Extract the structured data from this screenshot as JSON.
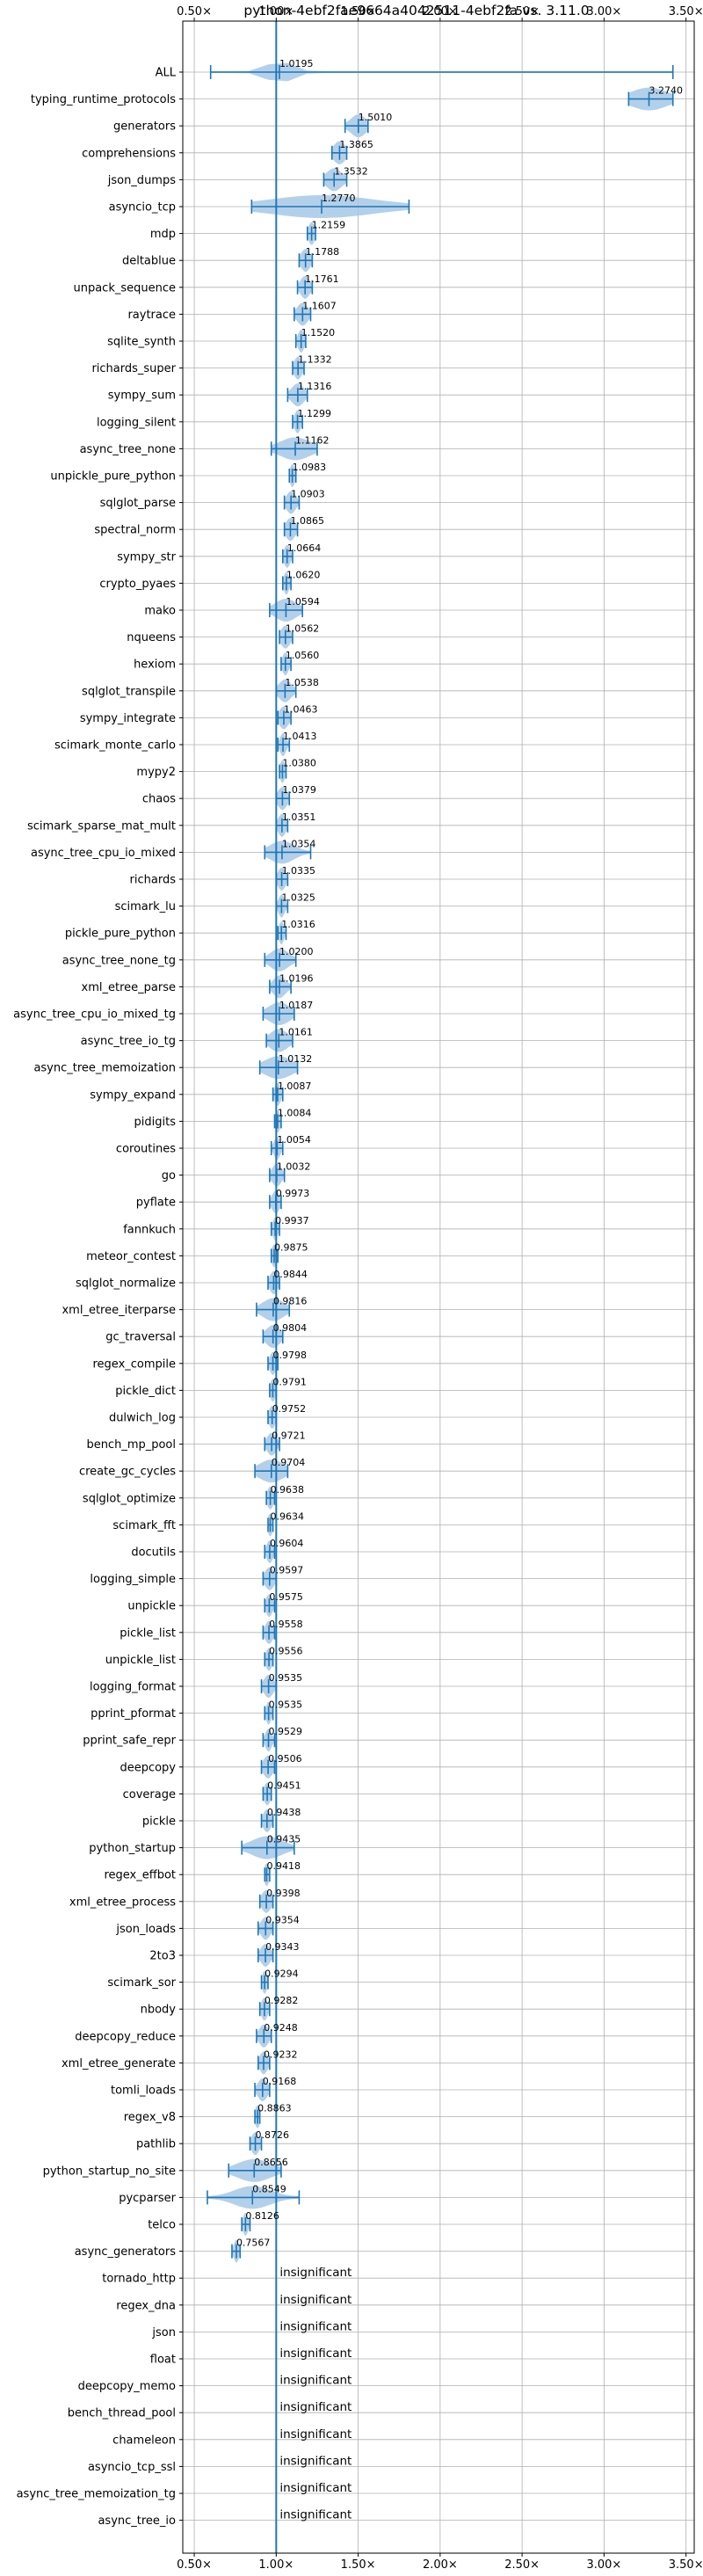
{
  "chart_data": {
    "type": "violin",
    "title": "python-4ebf2fae9664a4042511-4ebf2fa vs. 3.11.0",
    "xlim": [
      0.43,
      3.55
    ],
    "reference_line": 1.0,
    "grid": true,
    "x_ticks": [
      0.5,
      1.0,
      1.5,
      2.0,
      2.5,
      3.0,
      3.5
    ],
    "x_tick_labels": [
      "0.50×",
      "1.00×",
      "1.50×",
      "2.00×",
      "2.50×",
      "3.00×",
      "3.50×"
    ],
    "benchmarks": [
      {
        "name": "ALL",
        "label": "1.0195",
        "value": 1.0195,
        "min": 0.6,
        "max": 3.42,
        "spread": 0.08
      },
      {
        "name": "typing_runtime_protocols",
        "label": "3.2740",
        "value": 3.274,
        "min": 3.15,
        "max": 3.42,
        "spread": 0.12
      },
      {
        "name": "generators",
        "label": "1.5010",
        "value": 1.501,
        "min": 1.42,
        "max": 1.56,
        "spread": 0.05
      },
      {
        "name": "comprehensions",
        "label": "1.3865",
        "value": 1.3865,
        "min": 1.34,
        "max": 1.43,
        "spread": 0.04
      },
      {
        "name": "json_dumps",
        "label": "1.3532",
        "value": 1.3532,
        "min": 1.29,
        "max": 1.43,
        "spread": 0.05
      },
      {
        "name": "asyncio_tcp",
        "label": "1.2770",
        "value": 1.277,
        "min": 0.85,
        "max": 1.81,
        "spread": 0.35
      },
      {
        "name": "mdp",
        "label": "1.2159",
        "value": 1.2159,
        "min": 1.19,
        "max": 1.24,
        "spread": 0.02
      },
      {
        "name": "deltablue",
        "label": "1.1788",
        "value": 1.1788,
        "min": 1.14,
        "max": 1.22,
        "spread": 0.03
      },
      {
        "name": "unpack_sequence",
        "label": "1.1761",
        "value": 1.1761,
        "min": 1.13,
        "max": 1.22,
        "spread": 0.03
      },
      {
        "name": "raytrace",
        "label": "1.1607",
        "value": 1.1607,
        "min": 1.11,
        "max": 1.21,
        "spread": 0.035
      },
      {
        "name": "sqlite_synth",
        "label": "1.1520",
        "value": 1.152,
        "min": 1.12,
        "max": 1.18,
        "spread": 0.02
      },
      {
        "name": "richards_super",
        "label": "1.1332",
        "value": 1.1332,
        "min": 1.1,
        "max": 1.17,
        "spread": 0.025
      },
      {
        "name": "sympy_sum",
        "label": "1.1316",
        "value": 1.1316,
        "min": 1.07,
        "max": 1.19,
        "spread": 0.04
      },
      {
        "name": "logging_silent",
        "label": "1.1299",
        "value": 1.1299,
        "min": 1.1,
        "max": 1.16,
        "spread": 0.02
      },
      {
        "name": "async_tree_none",
        "label": "1.1162",
        "value": 1.1162,
        "min": 0.97,
        "max": 1.25,
        "spread": 0.1
      },
      {
        "name": "unpickle_pure_python",
        "label": "1.0983",
        "value": 1.0983,
        "min": 1.08,
        "max": 1.12,
        "spread": 0.015
      },
      {
        "name": "sqlglot_parse",
        "label": "1.0903",
        "value": 1.0903,
        "min": 1.05,
        "max": 1.14,
        "spread": 0.03
      },
      {
        "name": "spectral_norm",
        "label": "1.0865",
        "value": 1.0865,
        "min": 1.05,
        "max": 1.13,
        "spread": 0.03
      },
      {
        "name": "sympy_str",
        "label": "1.0664",
        "value": 1.0664,
        "min": 1.04,
        "max": 1.1,
        "spread": 0.02
      },
      {
        "name": "crypto_pyaes",
        "label": "1.0620",
        "value": 1.062,
        "min": 1.04,
        "max": 1.09,
        "spread": 0.015
      },
      {
        "name": "mako",
        "label": "1.0594",
        "value": 1.0594,
        "min": 0.96,
        "max": 1.16,
        "spread": 0.07
      },
      {
        "name": "nqueens",
        "label": "1.0562",
        "value": 1.0562,
        "min": 1.02,
        "max": 1.1,
        "spread": 0.03
      },
      {
        "name": "hexiom",
        "label": "1.0560",
        "value": 1.056,
        "min": 1.03,
        "max": 1.09,
        "spread": 0.02
      },
      {
        "name": "sqlglot_transpile",
        "label": "1.0538",
        "value": 1.0538,
        "min": 1.0,
        "max": 1.12,
        "spread": 0.04
      },
      {
        "name": "sympy_integrate",
        "label": "1.0463",
        "value": 1.0463,
        "min": 1.01,
        "max": 1.09,
        "spread": 0.03
      },
      {
        "name": "scimark_monte_carlo",
        "label": "1.0413",
        "value": 1.0413,
        "min": 1.01,
        "max": 1.08,
        "spread": 0.02
      },
      {
        "name": "mypy2",
        "label": "1.0380",
        "value": 1.038,
        "min": 1.02,
        "max": 1.06,
        "spread": 0.015
      },
      {
        "name": "chaos",
        "label": "1.0379",
        "value": 1.0379,
        "min": 1.0,
        "max": 1.08,
        "spread": 0.03
      },
      {
        "name": "scimark_sparse_mat_mult",
        "label": "1.0351",
        "value": 1.0351,
        "min": 1.0,
        "max": 1.07,
        "spread": 0.025
      },
      {
        "name": "async_tree_cpu_io_mixed",
        "label": "1.0354",
        "value": 1.0354,
        "min": 0.93,
        "max": 1.21,
        "spread": 0.08
      },
      {
        "name": "richards",
        "label": "1.0335",
        "value": 1.0335,
        "min": 1.0,
        "max": 1.07,
        "spread": 0.025
      },
      {
        "name": "scimark_lu",
        "label": "1.0325",
        "value": 1.0325,
        "min": 1.0,
        "max": 1.07,
        "spread": 0.02
      },
      {
        "name": "pickle_pure_python",
        "label": "1.0316",
        "value": 1.0316,
        "min": 1.01,
        "max": 1.06,
        "spread": 0.015
      },
      {
        "name": "async_tree_none_tg",
        "label": "1.0200",
        "value": 1.02,
        "min": 0.93,
        "max": 1.12,
        "spread": 0.06
      },
      {
        "name": "xml_etree_parse",
        "label": "1.0196",
        "value": 1.0196,
        "min": 0.96,
        "max": 1.09,
        "spread": 0.04
      },
      {
        "name": "async_tree_cpu_io_mixed_tg",
        "label": "1.0187",
        "value": 1.0187,
        "min": 0.92,
        "max": 1.11,
        "spread": 0.07
      },
      {
        "name": "async_tree_io_tg",
        "label": "1.0161",
        "value": 1.0161,
        "min": 0.94,
        "max": 1.1,
        "spread": 0.06
      },
      {
        "name": "async_tree_memoization",
        "label": "1.0132",
        "value": 1.0132,
        "min": 0.9,
        "max": 1.13,
        "spread": 0.09
      },
      {
        "name": "sympy_expand",
        "label": "1.0087",
        "value": 1.0087,
        "min": 0.98,
        "max": 1.04,
        "spread": 0.02
      },
      {
        "name": "pidigits",
        "label": "1.0084",
        "value": 1.0084,
        "min": 0.99,
        "max": 1.03,
        "spread": 0.015
      },
      {
        "name": "coroutines",
        "label": "1.0054",
        "value": 1.0054,
        "min": 0.97,
        "max": 1.04,
        "spread": 0.02
      },
      {
        "name": "go",
        "label": "1.0032",
        "value": 1.0032,
        "min": 0.96,
        "max": 1.05,
        "spread": 0.03
      },
      {
        "name": "pyflate",
        "label": "0.9973",
        "value": 0.9973,
        "min": 0.96,
        "max": 1.03,
        "spread": 0.025
      },
      {
        "name": "fannkuch",
        "label": "0.9937",
        "value": 0.9937,
        "min": 0.97,
        "max": 1.02,
        "spread": 0.015
      },
      {
        "name": "meteor_contest",
        "label": "0.9875",
        "value": 0.9875,
        "min": 0.97,
        "max": 1.01,
        "spread": 0.015
      },
      {
        "name": "sqlglot_normalize",
        "label": "0.9844",
        "value": 0.9844,
        "min": 0.95,
        "max": 1.02,
        "spread": 0.025
      },
      {
        "name": "xml_etree_iterparse",
        "label": "0.9816",
        "value": 0.9816,
        "min": 0.88,
        "max": 1.08,
        "spread": 0.07
      },
      {
        "name": "gc_traversal",
        "label": "0.9804",
        "value": 0.9804,
        "min": 0.92,
        "max": 1.04,
        "spread": 0.045
      },
      {
        "name": "regex_compile",
        "label": "0.9798",
        "value": 0.9798,
        "min": 0.95,
        "max": 1.01,
        "spread": 0.02
      },
      {
        "name": "pickle_dict",
        "label": "0.9791",
        "value": 0.9791,
        "min": 0.96,
        "max": 1.0,
        "spread": 0.015
      },
      {
        "name": "dulwich_log",
        "label": "0.9752",
        "value": 0.9752,
        "min": 0.95,
        "max": 1.0,
        "spread": 0.02
      },
      {
        "name": "bench_mp_pool",
        "label": "0.9721",
        "value": 0.9721,
        "min": 0.93,
        "max": 1.02,
        "spread": 0.03
      },
      {
        "name": "create_gc_cycles",
        "label": "0.9704",
        "value": 0.9704,
        "min": 0.87,
        "max": 1.07,
        "spread": 0.08
      },
      {
        "name": "sqlglot_optimize",
        "label": "0.9638",
        "value": 0.9638,
        "min": 0.94,
        "max": 0.99,
        "spread": 0.02
      },
      {
        "name": "scimark_fft",
        "label": "0.9634",
        "value": 0.9634,
        "min": 0.95,
        "max": 0.98,
        "spread": 0.01
      },
      {
        "name": "docutils",
        "label": "0.9604",
        "value": 0.9604,
        "min": 0.93,
        "max": 0.99,
        "spread": 0.02
      },
      {
        "name": "logging_simple",
        "label": "0.9597",
        "value": 0.9597,
        "min": 0.92,
        "max": 1.0,
        "spread": 0.03
      },
      {
        "name": "unpickle",
        "label": "0.9575",
        "value": 0.9575,
        "min": 0.93,
        "max": 0.99,
        "spread": 0.02
      },
      {
        "name": "pickle_list",
        "label": "0.9558",
        "value": 0.9558,
        "min": 0.92,
        "max": 0.99,
        "spread": 0.025
      },
      {
        "name": "unpickle_list",
        "label": "0.9556",
        "value": 0.9556,
        "min": 0.93,
        "max": 0.98,
        "spread": 0.02
      },
      {
        "name": "logging_format",
        "label": "0.9535",
        "value": 0.9535,
        "min": 0.91,
        "max": 1.0,
        "spread": 0.03
      },
      {
        "name": "pprint_pformat",
        "label": "0.9535",
        "value": 0.9535,
        "min": 0.93,
        "max": 0.98,
        "spread": 0.015
      },
      {
        "name": "pprint_safe_repr",
        "label": "0.9529",
        "value": 0.9529,
        "min": 0.92,
        "max": 0.99,
        "spread": 0.02
      },
      {
        "name": "deepcopy",
        "label": "0.9506",
        "value": 0.9506,
        "min": 0.91,
        "max": 0.99,
        "spread": 0.03
      },
      {
        "name": "coverage",
        "label": "0.9451",
        "value": 0.9451,
        "min": 0.92,
        "max": 0.97,
        "spread": 0.02
      },
      {
        "name": "pickle",
        "label": "0.9438",
        "value": 0.9438,
        "min": 0.91,
        "max": 0.98,
        "spread": 0.025
      },
      {
        "name": "python_startup",
        "label": "0.9435",
        "value": 0.9435,
        "min": 0.79,
        "max": 1.11,
        "spread": 0.1
      },
      {
        "name": "regex_effbot",
        "label": "0.9418",
        "value": 0.9418,
        "min": 0.93,
        "max": 0.96,
        "spread": 0.01
      },
      {
        "name": "xml_etree_process",
        "label": "0.9398",
        "value": 0.9398,
        "min": 0.9,
        "max": 0.98,
        "spread": 0.03
      },
      {
        "name": "json_loads",
        "label": "0.9354",
        "value": 0.9354,
        "min": 0.89,
        "max": 0.98,
        "spread": 0.03
      },
      {
        "name": "2to3",
        "label": "0.9343",
        "value": 0.9343,
        "min": 0.89,
        "max": 0.98,
        "spread": 0.03
      },
      {
        "name": "scimark_sor",
        "label": "0.9294",
        "value": 0.9294,
        "min": 0.91,
        "max": 0.95,
        "spread": 0.015
      },
      {
        "name": "nbody",
        "label": "0.9282",
        "value": 0.9282,
        "min": 0.9,
        "max": 0.96,
        "spread": 0.02
      },
      {
        "name": "deepcopy_reduce",
        "label": "0.9248",
        "value": 0.9248,
        "min": 0.88,
        "max": 0.97,
        "spread": 0.03
      },
      {
        "name": "xml_etree_generate",
        "label": "0.9232",
        "value": 0.9232,
        "min": 0.89,
        "max": 0.96,
        "spread": 0.025
      },
      {
        "name": "tomli_loads",
        "label": "0.9168",
        "value": 0.9168,
        "min": 0.87,
        "max": 0.96,
        "spread": 0.03
      },
      {
        "name": "regex_v8",
        "label": "0.8863",
        "value": 0.8863,
        "min": 0.87,
        "max": 0.9,
        "spread": 0.012
      },
      {
        "name": "pathlib",
        "label": "0.8726",
        "value": 0.8726,
        "min": 0.84,
        "max": 0.91,
        "spread": 0.025
      },
      {
        "name": "python_startup_no_site",
        "label": "0.8656",
        "value": 0.8656,
        "min": 0.71,
        "max": 1.03,
        "spread": 0.11
      },
      {
        "name": "pycparser",
        "label": "0.8549",
        "value": 0.8549,
        "min": 0.58,
        "max": 1.14,
        "spread": 0.12
      },
      {
        "name": "telco",
        "label": "0.8126",
        "value": 0.8126,
        "min": 0.79,
        "max": 0.84,
        "spread": 0.015
      },
      {
        "name": "async_generators",
        "label": "0.7567",
        "value": 0.7567,
        "min": 0.73,
        "max": 0.78,
        "spread": 0.015
      },
      {
        "name": "tornado_http",
        "label": "insignificant",
        "value": null
      },
      {
        "name": "regex_dna",
        "label": "insignificant",
        "value": null
      },
      {
        "name": "json",
        "label": "insignificant",
        "value": null
      },
      {
        "name": "float",
        "label": "insignificant",
        "value": null
      },
      {
        "name": "deepcopy_memo",
        "label": "insignificant",
        "value": null
      },
      {
        "name": "bench_thread_pool",
        "label": "insignificant",
        "value": null
      },
      {
        "name": "chameleon",
        "label": "insignificant",
        "value": null
      },
      {
        "name": "asyncio_tcp_ssl",
        "label": "insignificant",
        "value": null
      },
      {
        "name": "async_tree_memoization_tg",
        "label": "insignificant",
        "value": null
      },
      {
        "name": "async_tree_io",
        "label": "insignificant",
        "value": null
      }
    ],
    "colors": {
      "violin": "#a6c8e8",
      "marker": "#1f77b4",
      "grid": "#b0b0b0",
      "axis": "#000000",
      "text": "#000000"
    }
  }
}
